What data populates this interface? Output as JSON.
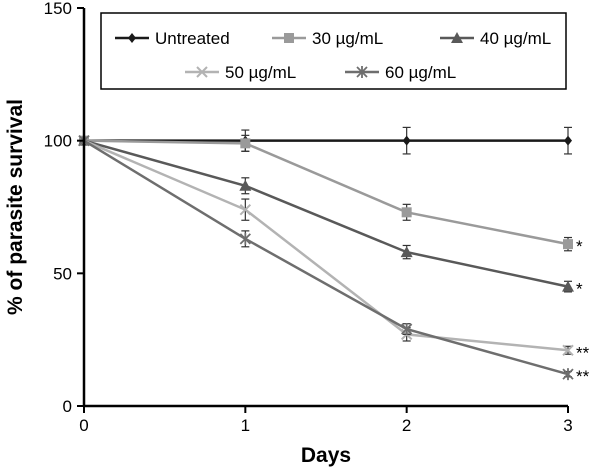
{
  "chart_data": {
    "type": "line",
    "title": "",
    "xlabel": "Days",
    "ylabel": "% of parasite survival",
    "x": [
      0,
      1,
      2,
      3
    ],
    "xticks": [
      "0",
      "1",
      "2",
      "3"
    ],
    "xlim": [
      0,
      3
    ],
    "ylim": [
      0,
      150
    ],
    "yticks": [
      "0",
      "50",
      "100",
      "150"
    ],
    "grid": false,
    "legend_placement": "top-right",
    "series": [
      {
        "name": "Untreated",
        "values": [
          100,
          100,
          100,
          100
        ],
        "errors": [
          0,
          4,
          5,
          5
        ],
        "marker": "diamond",
        "color": "#1a1a1a",
        "sig": ""
      },
      {
        "name": "30 µg/mL",
        "values": [
          100,
          99,
          73,
          61
        ],
        "errors": [
          0,
          3,
          3,
          2.5
        ],
        "marker": "square",
        "color": "#9a9a9a",
        "sig": "*"
      },
      {
        "name": "40 µg/mL",
        "values": [
          100,
          83,
          58,
          45
        ],
        "errors": [
          0,
          3,
          2.5,
          2
        ],
        "marker": "triangle",
        "color": "#595959",
        "sig": "*"
      },
      {
        "name": "50 µg/mL",
        "values": [
          100,
          74,
          27,
          21
        ],
        "errors": [
          0,
          4,
          2.5,
          1.5
        ],
        "marker": "x",
        "color": "#b3b3b3",
        "sig": "**"
      },
      {
        "name": "60 µg/mL",
        "values": [
          100,
          63,
          29,
          12
        ],
        "errors": [
          0,
          3,
          2,
          1
        ],
        "marker": "star",
        "color": "#6e6e6e",
        "sig": "**"
      }
    ]
  }
}
